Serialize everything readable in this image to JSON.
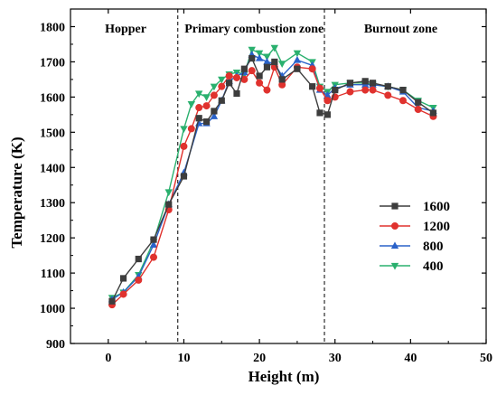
{
  "chart_data": {
    "type": "line",
    "xlabel": "Height (m)",
    "ylabel": "Temperature (K)",
    "xlim": [
      -5,
      50
    ],
    "ylim": [
      900,
      1850
    ],
    "xticks": [
      0,
      10,
      20,
      30,
      40,
      50
    ],
    "yticks": [
      900,
      1000,
      1100,
      1200,
      1300,
      1400,
      1500,
      1600,
      1700,
      1800
    ],
    "grid": false,
    "legend_position": "right",
    "zones": [
      {
        "label": "Hopper",
        "x_center": 2.3
      },
      {
        "label": "Primary combustion zone",
        "x_center": 19.3
      },
      {
        "label": "Burnout zone",
        "x_center": 38.7
      }
    ],
    "boundaries": [
      9.2,
      28.6
    ],
    "series": [
      {
        "name": "1600",
        "color": "#3d3d3d",
        "marker": "square",
        "x": [
          0.5,
          2,
          4,
          6,
          8,
          10,
          12,
          13,
          14,
          15,
          16,
          17,
          18,
          19,
          20,
          21,
          22,
          23,
          25,
          27,
          28,
          29,
          30,
          32,
          34,
          35,
          37,
          39,
          41,
          43
        ],
        "y": [
          1020,
          1085,
          1140,
          1195,
          1295,
          1375,
          1540,
          1530,
          1560,
          1590,
          1640,
          1610,
          1680,
          1710,
          1660,
          1685,
          1700,
          1650,
          1680,
          1630,
          1555,
          1550,
          1620,
          1640,
          1645,
          1640,
          1630,
          1620,
          1585,
          1555
        ]
      },
      {
        "name": "1200",
        "color": "#e0322e",
        "marker": "circle",
        "x": [
          0.5,
          2,
          4,
          6,
          8,
          10,
          11,
          12,
          13,
          14,
          15,
          16,
          17,
          18,
          19,
          20,
          21,
          22,
          23,
          25,
          27,
          28,
          29,
          30,
          32,
          34,
          35,
          37,
          39,
          41,
          43
        ],
        "y": [
          1010,
          1040,
          1080,
          1145,
          1280,
          1460,
          1510,
          1570,
          1575,
          1605,
          1630,
          1660,
          1655,
          1650,
          1675,
          1640,
          1620,
          1685,
          1635,
          1685,
          1680,
          1625,
          1590,
          1600,
          1615,
          1620,
          1620,
          1605,
          1590,
          1565,
          1545
        ]
      },
      {
        "name": "800",
        "color": "#2a62c9",
        "marker": "triangle-up",
        "x": [
          0.5,
          2,
          4,
          6,
          8,
          10,
          12,
          13,
          14,
          15,
          16,
          17,
          18,
          19,
          20,
          21,
          22,
          23,
          25,
          27,
          28,
          29,
          30,
          32,
          34,
          35,
          37,
          39,
          41,
          43
        ],
        "y": [
          1025,
          1045,
          1090,
          1180,
          1295,
          1385,
          1525,
          1525,
          1545,
          1590,
          1645,
          1660,
          1670,
          1720,
          1710,
          1700,
          1695,
          1660,
          1705,
          1690,
          1620,
          1605,
          1625,
          1635,
          1635,
          1635,
          1630,
          1615,
          1570,
          1560
        ]
      },
      {
        "name": "400",
        "color": "#2ab06e",
        "marker": "triangle-down",
        "x": [
          0.5,
          2,
          4,
          6,
          8,
          10,
          11,
          12,
          13,
          14,
          15,
          16,
          17,
          18,
          19,
          20,
          21,
          22,
          23,
          25,
          27,
          28,
          29,
          30,
          32,
          34,
          35,
          37,
          39,
          41,
          43
        ],
        "y": [
          1030,
          1045,
          1095,
          1190,
          1330,
          1510,
          1580,
          1610,
          1600,
          1630,
          1650,
          1665,
          1670,
          1665,
          1735,
          1725,
          1715,
          1740,
          1695,
          1725,
          1700,
          1630,
          1615,
          1635,
          1640,
          1640,
          1635,
          1630,
          1620,
          1590,
          1570
        ]
      }
    ]
  }
}
